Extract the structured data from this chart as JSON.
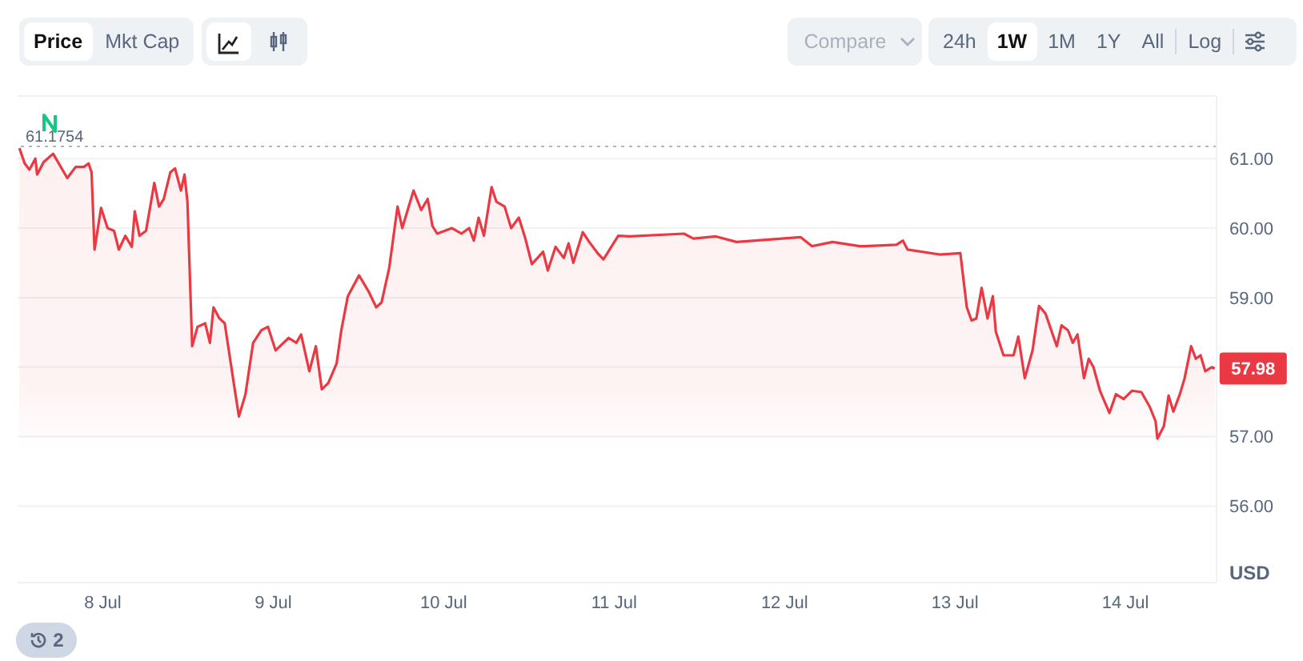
{
  "chart_data": {
    "type": "area",
    "ylabel": "USD",
    "grid": "y",
    "x": [
      "--07-07T12:15",
      "--07-07T13:00",
      "--07-07T13:40",
      "--07-07T14:30",
      "--07-07T14:45",
      "--07-07T15:40",
      "--07-07T17:00",
      "--07-07T19:00",
      "--07-07T20:10",
      "--07-07T21:20",
      "--07-07T22:00",
      "--07-07T22:25",
      "--07-07T22:50",
      "--07-07T23:45",
      "--07-08T00:40",
      "--07-08T01:35",
      "--07-08T02:15",
      "--07-08T03:10",
      "--07-08T04:05",
      "--07-08T04:30",
      "--07-08T05:10",
      "--07-08T06:05",
      "--07-08T07:15",
      "--07-08T07:55",
      "--07-08T08:35",
      "--07-08T09:30",
      "--07-08T10:10",
      "--07-08T11:00",
      "--07-08T11:30",
      "--07-08T11:55",
      "--07-08T12:35",
      "--07-08T13:20",
      "--07-08T14:25",
      "--07-08T15:05",
      "--07-08T15:35",
      "--07-08T16:25",
      "--07-08T17:10",
      "--07-08T18:30",
      "--07-08T19:10",
      "--07-08T20:05",
      "--07-08T21:10",
      "--07-08T22:20",
      "--07-08T23:15",
      "--07-09T00:20",
      "--07-09T02:10",
      "--07-09T03:15",
      "--07-09T03:55",
      "--07-09T05:05",
      "--07-09T06:00",
      "--07-09T06:50",
      "--07-09T07:45",
      "--07-09T08:55",
      "--07-09T09:35",
      "--07-09T10:30",
      "--07-09T12:05",
      "--07-09T13:25",
      "--07-09T14:30",
      "--07-09T15:15",
      "--07-09T16:20",
      "--07-09T17:30",
      "--07-09T18:10",
      "--07-09T19:45",
      "--07-09T20:50",
      "--07-09T21:45",
      "--07-09T22:25",
      "--07-09T23:05",
      "--07-10T01:10",
      "--07-10T02:30",
      "--07-10T03:35",
      "--07-10T04:15",
      "--07-10T04:55",
      "--07-10T05:40",
      "--07-10T06:45",
      "--07-10T07:25",
      "--07-10T08:35",
      "--07-10T09:30",
      "--07-10T10:35",
      "--07-10T11:30",
      "--07-10T12:25",
      "--07-10T14:00",
      "--07-10T14:40",
      "--07-10T15:45",
      "--07-10T16:55",
      "--07-10T17:35",
      "--07-10T18:15",
      "--07-10T19:35",
      "--07-10T20:30",
      "--07-10T21:40",
      "--07-10T22:30",
      "--07-11T00:35",
      "--07-11T02:10",
      "--07-11T09:50",
      "--07-11T11:10",
      "--07-11T14:20",
      "--07-11T17:15",
      "--07-12T02:15",
      "--07-12T03:50",
      "--07-12T06:45",
      "--07-12T10:35",
      "--07-12T11:15",
      "--07-12T15:45",
      "--07-12T16:40",
      "--07-12T17:20",
      "--07-12T21:50",
      "--07-13T00:45",
      "--07-13T01:40",
      "--07-13T02:20",
      "--07-13T03:00",
      "--07-13T03:45",
      "--07-13T04:35",
      "--07-13T05:20",
      "--07-13T05:45",
      "--07-13T06:50",
      "--07-13T08:15",
      "--07-13T08:55",
      "--07-13T09:50",
      "--07-13T10:55",
      "--07-13T11:50",
      "--07-13T12:45",
      "--07-13T14:20",
      "--07-13T15:00",
      "--07-13T15:55",
      "--07-13T16:35",
      "--07-13T17:15",
      "--07-13T18:10",
      "--07-13T18:50",
      "--07-13T19:30",
      "--07-13T20:25",
      "--07-13T21:45",
      "--07-13T22:40",
      "--07-13T23:45",
      "--07-14T00:55",
      "--07-14T02:15",
      "--07-14T03:25",
      "--07-14T04:15",
      "--07-14T04:30",
      "--07-14T05:25",
      "--07-14T06:05",
      "--07-14T06:45",
      "--07-14T07:40",
      "--07-14T08:20",
      "--07-14T09:15",
      "--07-14T09:55",
      "--07-14T10:35",
      "--07-14T11:15",
      "--07-14T12:10",
      "--07-14T12:35"
    ],
    "series": [
      {
        "color": "#ea3943",
        "values": [
          61.15,
          60.93,
          60.84,
          61.0,
          60.77,
          60.95,
          61.07,
          60.72,
          60.88,
          60.88,
          60.93,
          60.8,
          59.69,
          60.29,
          60.0,
          59.96,
          59.69,
          59.89,
          59.73,
          60.24,
          59.89,
          59.96,
          60.65,
          60.31,
          60.42,
          60.8,
          60.86,
          60.54,
          60.77,
          60.38,
          58.3,
          58.58,
          58.63,
          58.35,
          58.86,
          58.7,
          58.63,
          57.73,
          57.29,
          57.61,
          58.35,
          58.53,
          58.58,
          58.24,
          58.42,
          58.35,
          58.47,
          57.94,
          58.3,
          57.68,
          57.77,
          58.05,
          58.53,
          59.02,
          59.32,
          59.09,
          58.86,
          58.93,
          59.43,
          60.31,
          60.0,
          60.54,
          60.26,
          60.42,
          60.03,
          59.92,
          60.0,
          59.92,
          60.0,
          59.82,
          60.15,
          59.89,
          60.59,
          60.38,
          60.31,
          60.0,
          60.15,
          59.85,
          59.48,
          59.66,
          59.39,
          59.73,
          59.57,
          59.78,
          59.5,
          59.94,
          59.8,
          59.64,
          59.55,
          59.89,
          59.88,
          59.92,
          59.85,
          59.88,
          59.8,
          59.87,
          59.74,
          59.8,
          59.74,
          59.74,
          59.76,
          59.82,
          59.69,
          59.62,
          59.64,
          58.86,
          58.67,
          58.7,
          59.14,
          58.7,
          59.02,
          58.51,
          58.17,
          58.17,
          58.44,
          57.84,
          58.24,
          58.88,
          58.77,
          58.3,
          58.6,
          58.53,
          58.35,
          58.47,
          57.84,
          58.12,
          58.0,
          57.66,
          57.34,
          57.61,
          57.54,
          57.66,
          57.64,
          57.43,
          57.22,
          56.97,
          57.15,
          57.59,
          57.36,
          57.61,
          57.84,
          58.3,
          58.12,
          58.17,
          57.94,
          58.0,
          57.98
        ]
      }
    ],
    "xlim": [
      "--07-07T12:00",
      "--07-14T12:50"
    ],
    "xticks": [
      {
        "value": "--07-08",
        "label": "8 Jul"
      },
      {
        "value": "--07-09",
        "label": "9 Jul"
      },
      {
        "value": "--07-10",
        "label": "10 Jul"
      },
      {
        "value": "--07-11",
        "label": "11 Jul"
      },
      {
        "value": "--07-12",
        "label": "12 Jul"
      },
      {
        "value": "--07-13",
        "label": "13 Jul"
      },
      {
        "value": "--07-14",
        "label": "14 Jul"
      }
    ],
    "ylim": [
      54.9,
      61.9
    ],
    "yticks": [
      {
        "value": 56,
        "label": "56.00"
      },
      {
        "value": 57,
        "label": "57.00"
      },
      {
        "value": 58,
        "label": null
      },
      {
        "value": 59,
        "label": "59.00"
      },
      {
        "value": 60,
        "label": "60.00"
      },
      {
        "value": 61,
        "label": "61.00"
      }
    ],
    "ref_lines": [
      {
        "axis": "y",
        "value": 61.1754,
        "label": "61.1754",
        "color": "#b0b6c0",
        "line_style": "dotted"
      }
    ],
    "annotations": [
      {
        "text": "57.98",
        "x": "--07-14T12:35",
        "y": 57.98
      },
      "Price",
      "Mkt Cap",
      "Compare",
      "24h",
      "1W",
      "1M",
      "1Y",
      "All",
      "Log",
      "2"
    ]
  }
}
